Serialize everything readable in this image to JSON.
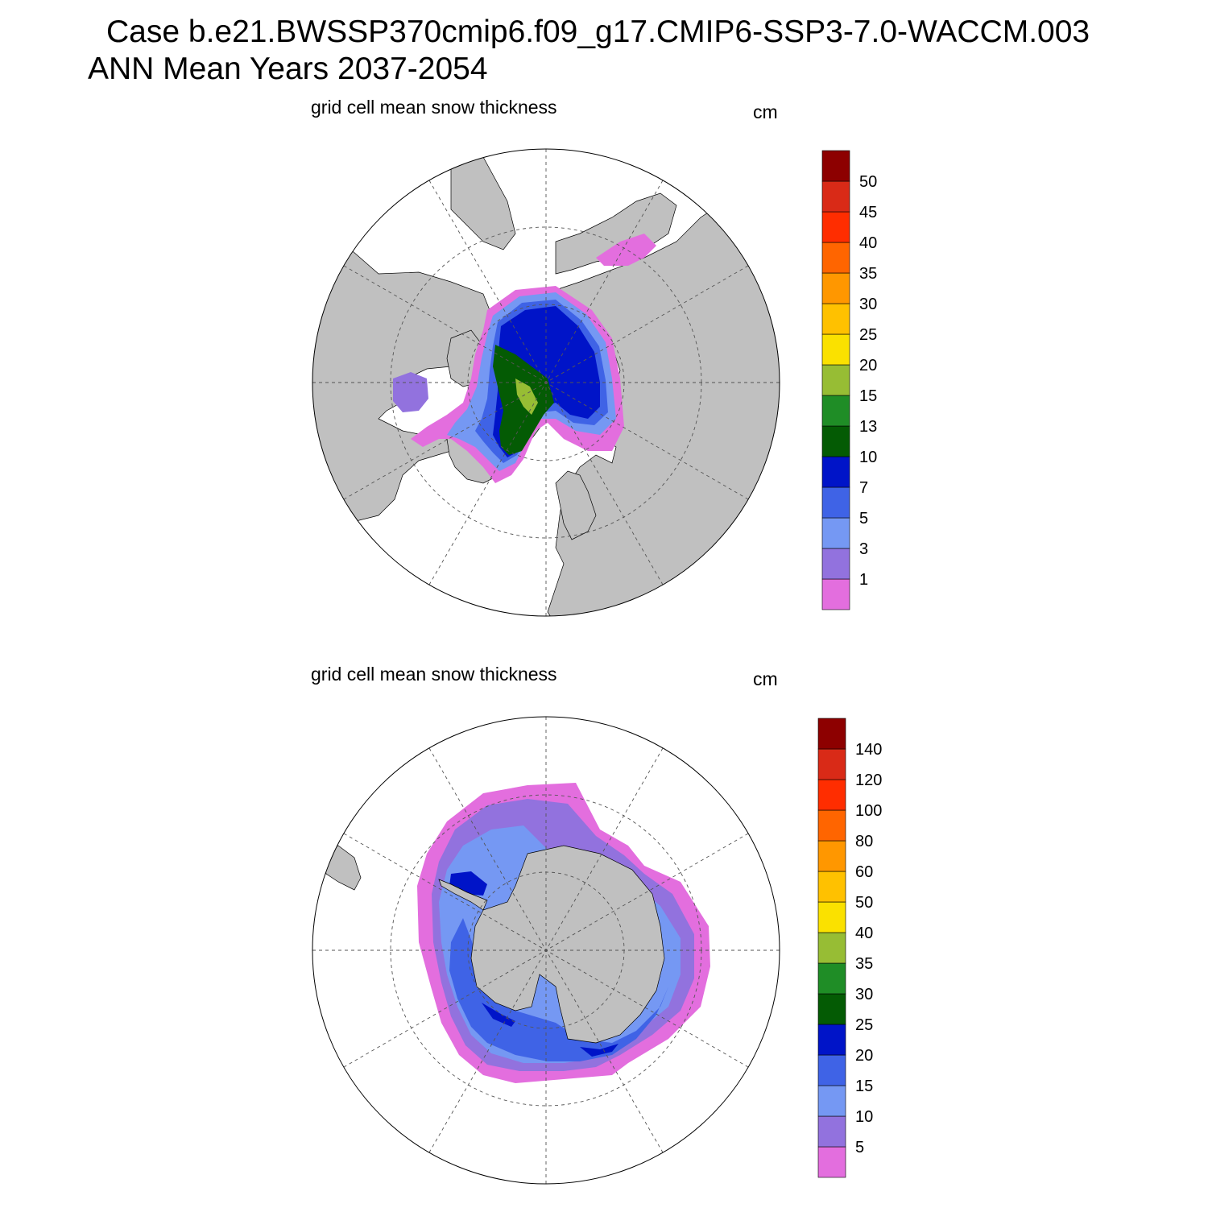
{
  "header": {
    "line1": "Case b.e21.BWSSP370cmip6.f09_g17.CMIP6-SSP3-7.0-WACCM.003",
    "line2": "ANN Mean    Years 2037-2054"
  },
  "panels": [
    {
      "id": "north",
      "title": "grid cell mean snow thickness",
      "units": "cm",
      "hemisphere": "NH polar stereographic",
      "colorbar": {
        "labels": [
          "1",
          "3",
          "5",
          "7",
          "10",
          "13",
          "15",
          "20",
          "25",
          "30",
          "35",
          "40",
          "45",
          "50"
        ],
        "colors": [
          "#e36ede",
          "#9272de",
          "#7598f3",
          "#3f63e6",
          "#0014c8",
          "#045b04",
          "#1f8d26",
          "#97bd34",
          "#fae100",
          "#ffc100",
          "#ff9700",
          "#ff6500",
          "#ff2d00",
          "#d92a17",
          "#8d0000"
        ]
      }
    },
    {
      "id": "south",
      "title": "grid cell mean snow thickness",
      "units": "cm",
      "hemisphere": "SH polar stereographic",
      "colorbar": {
        "labels": [
          "5",
          "10",
          "15",
          "20",
          "25",
          "30",
          "35",
          "40",
          "50",
          "60",
          "80",
          "100",
          "120",
          "140"
        ],
        "colors": [
          "#e36ede",
          "#9272de",
          "#7598f3",
          "#3f63e6",
          "#0014c8",
          "#045b04",
          "#1f8d26",
          "#97bd34",
          "#fae100",
          "#ffc100",
          "#ff9700",
          "#ff6500",
          "#ff2d00",
          "#d92a17",
          "#8d0000"
        ]
      }
    }
  ],
  "colors": {
    "land": "#c0c0c0",
    "background": "#ffffff"
  }
}
